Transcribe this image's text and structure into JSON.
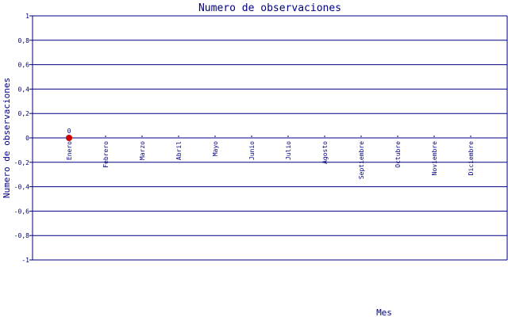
{
  "chart_data": {
    "type": "scatter",
    "title": "Numero de observaciones",
    "xlabel": "Mes",
    "ylabel": "Numero de observaciones",
    "categories": [
      "Enero",
      "Febrero",
      "Marzo",
      "Abril",
      "Mayo",
      "Junio",
      "Julio",
      "Agosto",
      "Septiembre",
      "Octubre",
      "Noviembre",
      "Diciembre"
    ],
    "points": [
      {
        "x": "Enero",
        "y": 0,
        "label": "0"
      }
    ],
    "ylim": [
      -1,
      1
    ],
    "yticks": [
      "1",
      "0,8",
      "0,6",
      "0,4",
      "0,2",
      "0",
      "-0,2",
      "-0,4",
      "-0,6",
      "-0,8",
      "-1"
    ],
    "grid": true,
    "colors": {
      "axis": "#000080",
      "grid": "#000080",
      "point": "#cc0000",
      "text": "#000080"
    }
  }
}
